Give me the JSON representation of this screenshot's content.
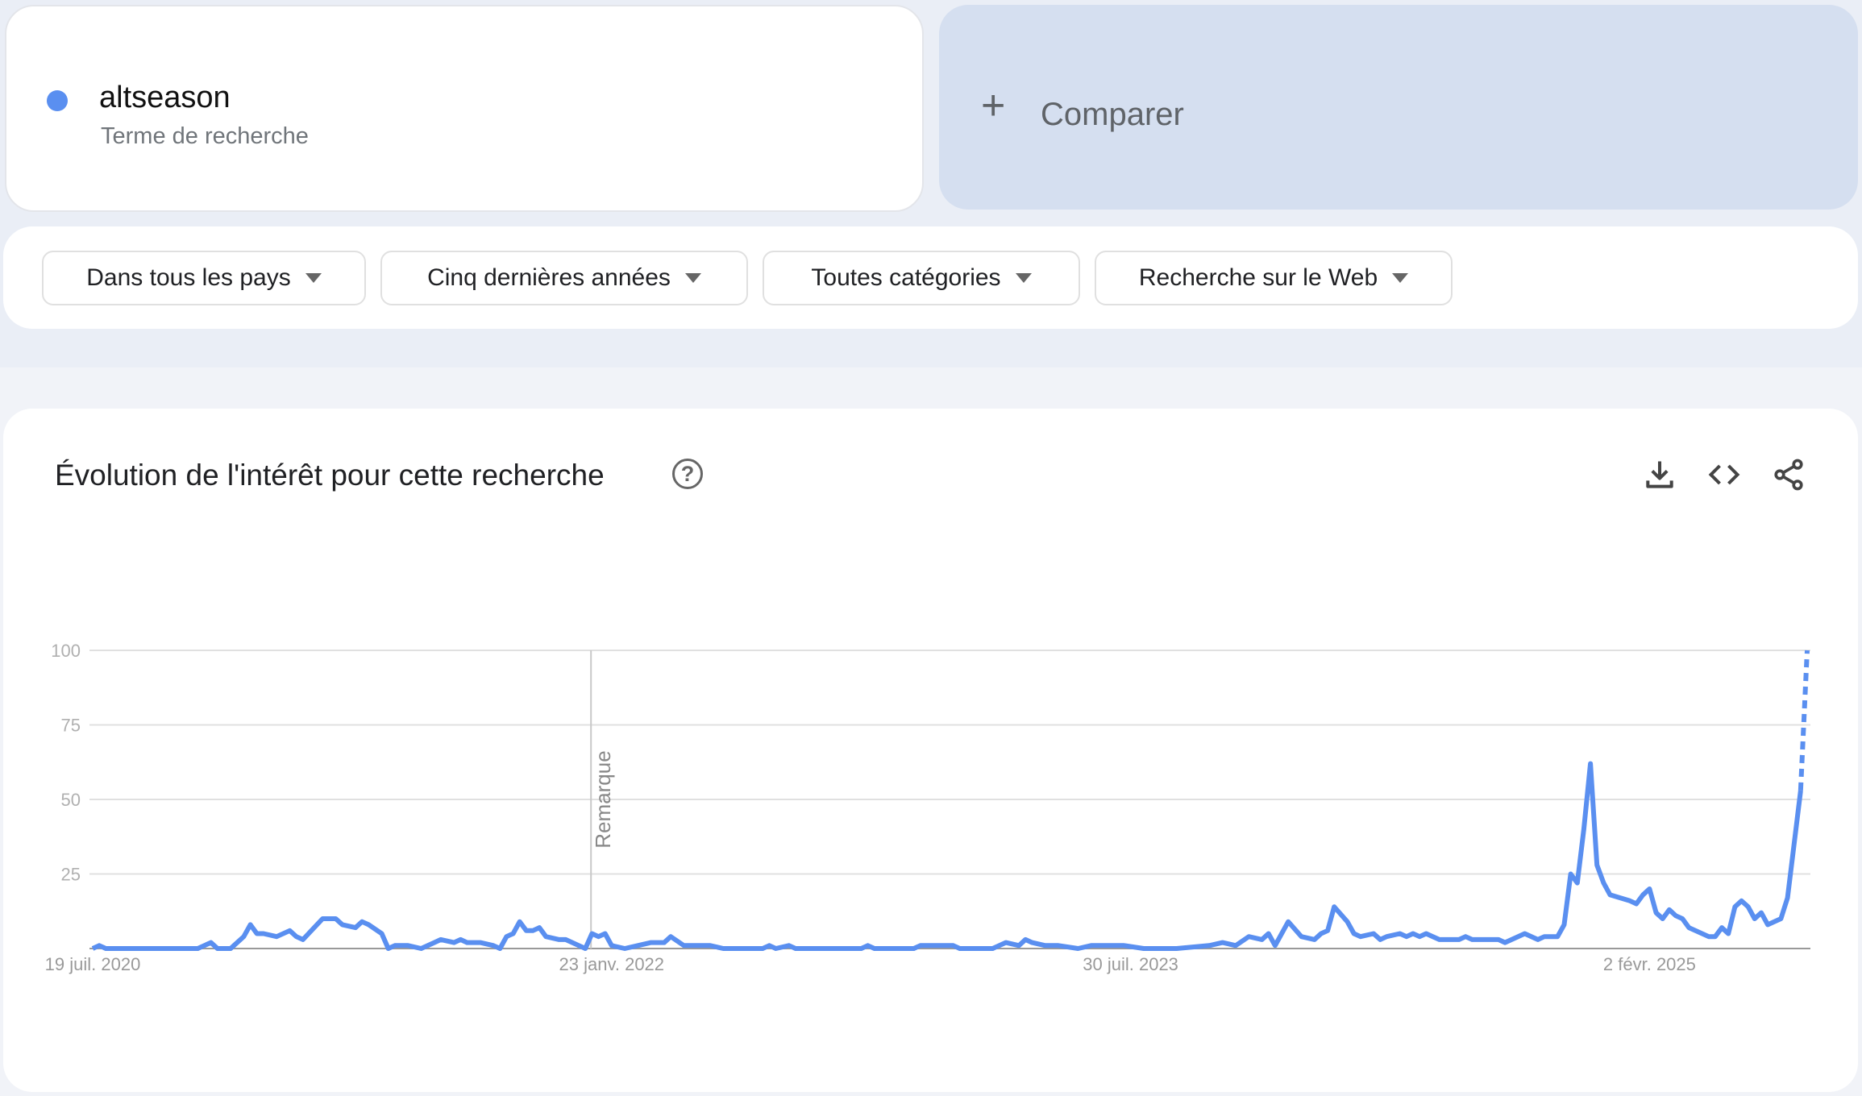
{
  "term": {
    "name": "altseason",
    "type": "Terme de recherche",
    "color": "#5a8ff0"
  },
  "compare": {
    "icon": "plus-icon",
    "plus": "+",
    "label": "Comparer"
  },
  "filters": [
    {
      "label": "Dans tous les pays"
    },
    {
      "label": "Cinq dernières années"
    },
    {
      "label": "Toutes catégories"
    },
    {
      "label": "Recherche sur le Web"
    }
  ],
  "chart_section": {
    "title": "Évolution de l'intérêt pour cette recherche",
    "help": "?",
    "actions": [
      "download-icon",
      "embed-code-icon",
      "share-icon"
    ]
  },
  "chart_data": {
    "type": "line",
    "title": "",
    "xlabel": "",
    "ylabel": "",
    "ylim": [
      0,
      100
    ],
    "xlim": [
      "2020-07-19",
      "2025-07-20"
    ],
    "y_ticks": [
      "0",
      "25",
      "50",
      "75",
      "100"
    ],
    "x_ticks": [
      {
        "date": "2020-07-19",
        "label": "19 juil. 2020"
      },
      {
        "date": "2022-01-23",
        "label": "23 janv. 2022"
      },
      {
        "date": "2023-07-30",
        "label": "30 juil. 2023"
      },
      {
        "date": "2025-02-02",
        "label": "2 févr. 2025"
      }
    ],
    "grid": true,
    "annotation": {
      "date": "2022-01-01",
      "label": "Remarque"
    },
    "series": [
      {
        "color": "#5a8ff0",
        "partial_last_point": true,
        "points": [
          [
            "2020-07-19",
            0
          ],
          [
            "2020-07-26",
            1
          ],
          [
            "2020-08-02",
            0
          ],
          [
            "2020-11-08",
            0
          ],
          [
            "2020-11-22",
            2
          ],
          [
            "2020-11-29",
            0
          ],
          [
            "2020-12-13",
            0
          ],
          [
            "2020-12-27",
            4
          ],
          [
            "2021-01-03",
            8
          ],
          [
            "2021-01-10",
            5
          ],
          [
            "2021-01-17",
            5
          ],
          [
            "2021-01-31",
            4
          ],
          [
            "2021-02-14",
            6
          ],
          [
            "2021-02-21",
            4
          ],
          [
            "2021-02-28",
            3
          ],
          [
            "2021-03-21",
            10
          ],
          [
            "2021-04-04",
            10
          ],
          [
            "2021-04-11",
            8
          ],
          [
            "2021-04-25",
            7
          ],
          [
            "2021-05-02",
            9
          ],
          [
            "2021-05-09",
            8
          ],
          [
            "2021-05-23",
            5
          ],
          [
            "2021-05-30",
            0
          ],
          [
            "2021-06-06",
            1
          ],
          [
            "2021-06-20",
            1
          ],
          [
            "2021-07-04",
            0
          ],
          [
            "2021-07-18",
            2
          ],
          [
            "2021-07-25",
            3
          ],
          [
            "2021-08-08",
            2
          ],
          [
            "2021-08-15",
            3
          ],
          [
            "2021-08-22",
            2
          ],
          [
            "2021-09-05",
            2
          ],
          [
            "2021-09-19",
            1
          ],
          [
            "2021-09-26",
            0
          ],
          [
            "2021-10-03",
            4
          ],
          [
            "2021-10-10",
            5
          ],
          [
            "2021-10-17",
            9
          ],
          [
            "2021-10-24",
            6
          ],
          [
            "2021-10-31",
            6
          ],
          [
            "2021-11-07",
            7
          ],
          [
            "2021-11-14",
            4
          ],
          [
            "2021-11-28",
            3
          ],
          [
            "2021-12-05",
            3
          ],
          [
            "2021-12-19",
            1
          ],
          [
            "2021-12-26",
            0
          ],
          [
            "2022-01-02",
            5
          ],
          [
            "2022-01-09",
            4
          ],
          [
            "2022-01-16",
            5
          ],
          [
            "2022-01-23",
            1
          ],
          [
            "2022-02-06",
            0
          ],
          [
            "2022-02-20",
            1
          ],
          [
            "2022-03-06",
            2
          ],
          [
            "2022-03-20",
            2
          ],
          [
            "2022-03-27",
            4
          ],
          [
            "2022-04-10",
            1
          ],
          [
            "2022-05-08",
            1
          ],
          [
            "2022-05-22",
            0
          ],
          [
            "2022-07-03",
            0
          ],
          [
            "2022-07-10",
            1
          ],
          [
            "2022-07-17",
            0
          ],
          [
            "2022-07-31",
            1
          ],
          [
            "2022-08-07",
            0
          ],
          [
            "2022-10-16",
            0
          ],
          [
            "2022-10-23",
            1
          ],
          [
            "2022-10-30",
            0
          ],
          [
            "2022-12-11",
            0
          ],
          [
            "2022-12-18",
            1
          ],
          [
            "2023-01-01",
            1
          ],
          [
            "2023-01-22",
            1
          ],
          [
            "2023-01-29",
            0
          ],
          [
            "2023-03-05",
            0
          ],
          [
            "2023-03-12",
            1
          ],
          [
            "2023-03-19",
            2
          ],
          [
            "2023-04-02",
            1
          ],
          [
            "2023-04-09",
            3
          ],
          [
            "2023-04-16",
            2
          ],
          [
            "2023-04-30",
            1
          ],
          [
            "2023-05-14",
            1
          ],
          [
            "2023-06-04",
            0
          ],
          [
            "2023-06-18",
            1
          ],
          [
            "2023-07-02",
            1
          ],
          [
            "2023-07-23",
            1
          ],
          [
            "2023-08-13",
            0
          ],
          [
            "2023-09-17",
            0
          ],
          [
            "2023-10-22",
            1
          ],
          [
            "2023-11-05",
            2
          ],
          [
            "2023-11-19",
            1
          ],
          [
            "2023-12-03",
            4
          ],
          [
            "2023-12-17",
            3
          ],
          [
            "2023-12-24",
            5
          ],
          [
            "2023-12-31",
            1
          ],
          [
            "2024-01-14",
            9
          ],
          [
            "2024-01-28",
            4
          ],
          [
            "2024-02-11",
            3
          ],
          [
            "2024-02-18",
            5
          ],
          [
            "2024-02-25",
            6
          ],
          [
            "2024-03-03",
            14
          ],
          [
            "2024-03-17",
            9
          ],
          [
            "2024-03-24",
            5
          ],
          [
            "2024-03-31",
            4
          ],
          [
            "2024-04-14",
            5
          ],
          [
            "2024-04-21",
            3
          ],
          [
            "2024-04-28",
            4
          ],
          [
            "2024-05-12",
            5
          ],
          [
            "2024-05-19",
            4
          ],
          [
            "2024-05-26",
            5
          ],
          [
            "2024-06-02",
            4
          ],
          [
            "2024-06-09",
            5
          ],
          [
            "2024-06-23",
            3
          ],
          [
            "2024-07-14",
            3
          ],
          [
            "2024-07-21",
            4
          ],
          [
            "2024-07-28",
            3
          ],
          [
            "2024-08-25",
            3
          ],
          [
            "2024-09-01",
            2
          ],
          [
            "2024-09-22",
            5
          ],
          [
            "2024-10-06",
            3
          ],
          [
            "2024-10-13",
            4
          ],
          [
            "2024-10-27",
            4
          ],
          [
            "2024-11-03",
            8
          ],
          [
            "2024-11-10",
            25
          ],
          [
            "2024-11-17",
            22
          ],
          [
            "2024-11-24",
            40
          ],
          [
            "2024-12-01",
            62
          ],
          [
            "2024-12-08",
            28
          ],
          [
            "2024-12-15",
            22
          ],
          [
            "2024-12-22",
            18
          ],
          [
            "2025-01-12",
            16
          ],
          [
            "2025-01-19",
            15
          ],
          [
            "2025-01-26",
            18
          ],
          [
            "2025-02-02",
            20
          ],
          [
            "2025-02-09",
            12
          ],
          [
            "2025-02-16",
            10
          ],
          [
            "2025-02-23",
            13
          ],
          [
            "2025-03-02",
            11
          ],
          [
            "2025-03-09",
            10
          ],
          [
            "2025-03-16",
            7
          ],
          [
            "2025-04-06",
            4
          ],
          [
            "2025-04-13",
            4
          ],
          [
            "2025-04-20",
            7
          ],
          [
            "2025-04-27",
            5
          ],
          [
            "2025-05-04",
            14
          ],
          [
            "2025-05-11",
            16
          ],
          [
            "2025-05-18",
            14
          ],
          [
            "2025-05-25",
            10
          ],
          [
            "2025-06-01",
            12
          ],
          [
            "2025-06-08",
            8
          ],
          [
            "2025-06-22",
            10
          ],
          [
            "2025-06-29",
            17
          ],
          [
            "2025-07-13",
            53
          ],
          [
            "2025-07-20",
            100
          ]
        ]
      }
    ]
  }
}
